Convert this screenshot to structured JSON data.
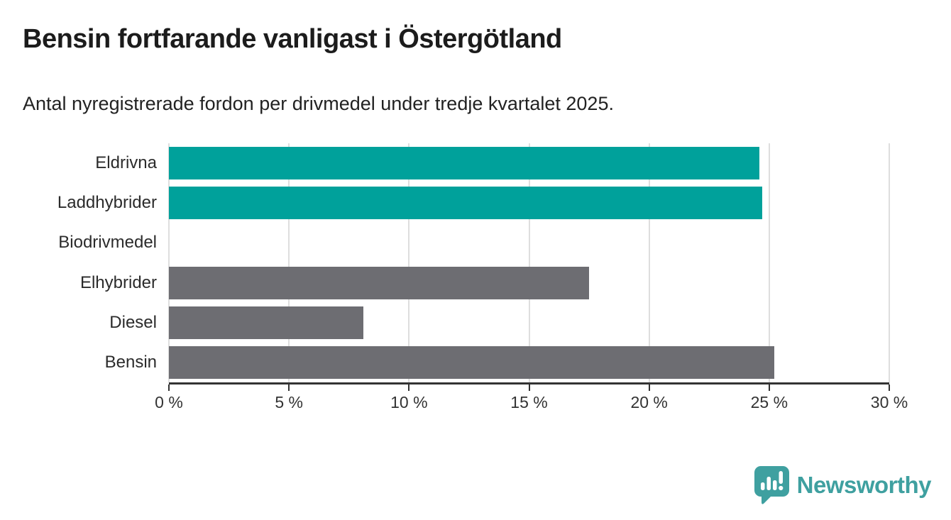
{
  "header": {
    "title": "Bensin fortfarande vanligast i Östergötland",
    "subtitle": "Antal nyregistrerade fordon per drivmedel under tredje kvartalet 2025."
  },
  "chart_data": {
    "type": "bar",
    "orientation": "horizontal",
    "title": "Bensin fortfarande vanligast i Östergötland",
    "subtitle": "Antal nyregistrerade fordon per drivmedel under tredje kvartalet 2025.",
    "categories": [
      "Eldrivna",
      "Laddhybrider",
      "Biodrivmedel",
      "Elhybrider",
      "Diesel",
      "Bensin"
    ],
    "values": [
      24.6,
      24.7,
      0,
      17.5,
      8.1,
      25.2
    ],
    "unit": "%",
    "xlabel": "",
    "ylabel": "",
    "xlim": [
      0,
      30
    ],
    "x_tick_values": [
      0,
      5,
      10,
      15,
      20,
      25,
      30
    ],
    "x_ticks": [
      "0 %",
      "5 %",
      "10 %",
      "15 %",
      "20 %",
      "25 %",
      "30 %"
    ],
    "grid": true,
    "legend": "none",
    "bar_colors": [
      "#00a19b",
      "#00a19b",
      "#6d6d72",
      "#6d6d72",
      "#6d6d72",
      "#6d6d72"
    ],
    "highlight_color": "#00a19b",
    "default_color": "#6d6d72",
    "gridline_color": "#dedede",
    "axis_color": "#333333"
  },
  "branding": {
    "logo_text": "Newsworthy",
    "logo_color": "#3fa0a0"
  }
}
